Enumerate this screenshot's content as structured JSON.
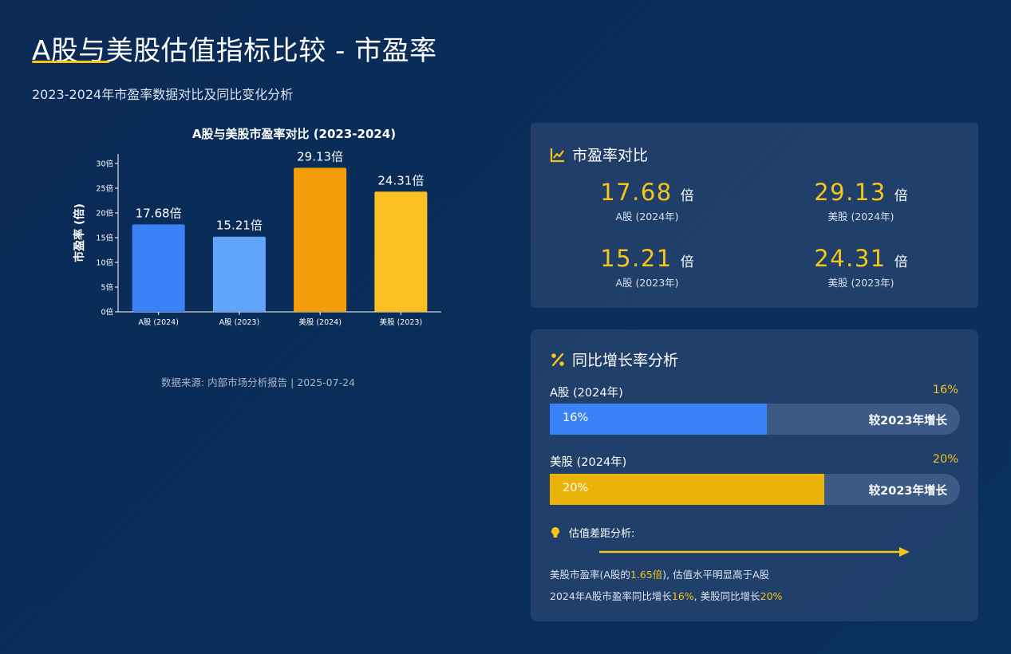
{
  "page": {
    "title": "A股与美股估值指标比较 - 市盈率",
    "subtitle": "2023-2024年市盈率数据对比及同比变化分析",
    "source": "数据来源: 内部市场分析报告 | 2025-07-24"
  },
  "chart_data": {
    "type": "bar",
    "title": "A股与美股市盈率对比 (2023-2024)",
    "ylabel": "市盈率 (倍)",
    "xlabel": "",
    "categories": [
      "A股 (2024)",
      "A股 (2023)",
      "美股 (2024)",
      "美股 (2023)"
    ],
    "values": [
      17.68,
      15.21,
      29.13,
      24.31
    ],
    "data_labels": [
      "17.68倍",
      "15.21倍",
      "29.13倍",
      "24.31倍"
    ],
    "colors": [
      "#3b82f6",
      "#60a5fa",
      "#f59e0b",
      "#fbbf24"
    ],
    "ylim": [
      0,
      30
    ],
    "yticks": [
      0,
      5,
      10,
      15,
      20,
      25,
      30
    ],
    "ytick_labels": [
      "0倍",
      "5倍",
      "10倍",
      "15倍",
      "20倍",
      "25倍",
      "30倍"
    ],
    "grid": false,
    "legend": "none"
  },
  "pe_card": {
    "title": "市盈率对比",
    "icon": "line-chart-icon",
    "unit": "倍",
    "items": [
      {
        "value": "17.68",
        "label": "A股 (2024年)"
      },
      {
        "value": "29.13",
        "label": "美股 (2024年)"
      },
      {
        "value": "15.21",
        "label": "A股 (2023年)"
      },
      {
        "value": "24.31",
        "label": "美股 (2023年)"
      }
    ]
  },
  "growth_card": {
    "title": "同比增长率分析",
    "icon": "percent-icon",
    "rows": [
      {
        "label": "A股 (2024年)",
        "pct": "16%",
        "fill_text": "16%",
        "fill_fraction": 0.53,
        "note": "较2023年增长",
        "color": "#3b82f6"
      },
      {
        "label": "美股 (2024年)",
        "pct": "20%",
        "fill_text": "20%",
        "fill_fraction": 0.67,
        "note": "较2023年增长",
        "color": "#eab308"
      }
    ],
    "gap_title": "估值差距分析:",
    "line1": {
      "a": "美股市盈率(A股的",
      "b": "1.65倍",
      "c": "), 估值水平明显高于A股"
    },
    "line2": {
      "a": "2024年A股市盈率同比增长",
      "b": "16%",
      "c": ", 美股同比增长",
      "d": "20%"
    }
  },
  "colors": {
    "accent": "#f5c518",
    "blue": "#3b82f6",
    "light_blue": "#60a5fa",
    "orange": "#f59e0b",
    "yellow": "#fbbf24"
  }
}
